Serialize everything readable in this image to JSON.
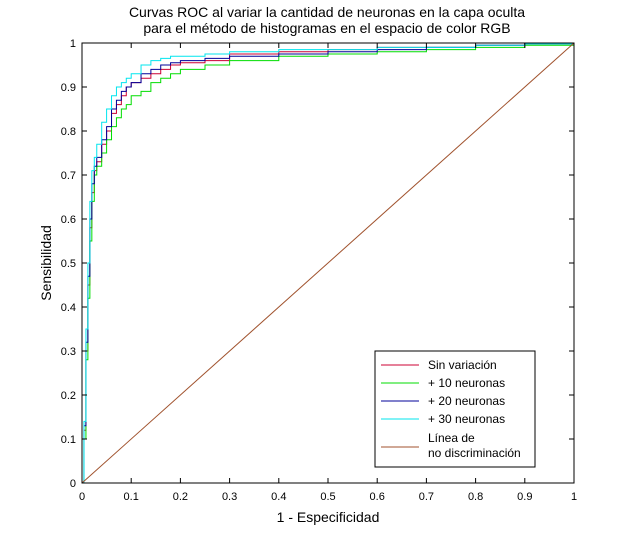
{
  "chart_data": {
    "type": "line",
    "title": [
      "Curvas ROC al variar la cantidad de neuronas en la capa oculta",
      "para el método de histogramas en el espacio de color RGB"
    ],
    "xlabel": "1 - Especificidad",
    "ylabel": "Sensibilidad",
    "xlim": [
      0,
      1
    ],
    "ylim": [
      0,
      1
    ],
    "xticks": [
      0,
      0.1,
      0.2,
      0.3,
      0.4,
      0.5,
      0.6,
      0.7,
      0.8,
      0.9,
      1
    ],
    "yticks": [
      0,
      0.1,
      0.2,
      0.3,
      0.4,
      0.5,
      0.6,
      0.7,
      0.8,
      0.9,
      1
    ],
    "xtick_labels": [
      "0",
      "0.1",
      "0.2",
      "0.3",
      "0.4",
      "0.5",
      "0.6",
      "0.7",
      "0.8",
      "0.9",
      "1"
    ],
    "ytick_labels": [
      "0",
      "0.1",
      "0.2",
      "0.3",
      "0.4",
      "0.5",
      "0.6",
      "0.7",
      "0.8",
      "0.9",
      "1"
    ],
    "grid": false,
    "legend_position": "bottom-right",
    "series": [
      {
        "name": "Sin variación",
        "color": "#cc0033",
        "points": [
          [
            0,
            0
          ],
          [
            0.004,
            0.12
          ],
          [
            0.008,
            0.3
          ],
          [
            0.012,
            0.45
          ],
          [
            0.016,
            0.58
          ],
          [
            0.02,
            0.66
          ],
          [
            0.025,
            0.71
          ],
          [
            0.03,
            0.73
          ],
          [
            0.04,
            0.77
          ],
          [
            0.05,
            0.8
          ],
          [
            0.06,
            0.84
          ],
          [
            0.07,
            0.86
          ],
          [
            0.08,
            0.88
          ],
          [
            0.09,
            0.9
          ],
          [
            0.1,
            0.91
          ],
          [
            0.12,
            0.92
          ],
          [
            0.14,
            0.93
          ],
          [
            0.16,
            0.94
          ],
          [
            0.18,
            0.95
          ],
          [
            0.2,
            0.955
          ],
          [
            0.25,
            0.96
          ],
          [
            0.3,
            0.975
          ],
          [
            0.4,
            0.98
          ],
          [
            0.5,
            0.985
          ],
          [
            0.6,
            0.99
          ],
          [
            0.7,
            0.99
          ],
          [
            0.8,
            0.995
          ],
          [
            0.9,
            0.998
          ],
          [
            1,
            1
          ]
        ]
      },
      {
        "name": "+ 10 neuronas",
        "color": "#00dd00",
        "points": [
          [
            0,
            0
          ],
          [
            0.004,
            0.1
          ],
          [
            0.008,
            0.28
          ],
          [
            0.012,
            0.42
          ],
          [
            0.016,
            0.55
          ],
          [
            0.02,
            0.64
          ],
          [
            0.025,
            0.7
          ],
          [
            0.03,
            0.72
          ],
          [
            0.04,
            0.75
          ],
          [
            0.05,
            0.78
          ],
          [
            0.06,
            0.81
          ],
          [
            0.07,
            0.83
          ],
          [
            0.08,
            0.85
          ],
          [
            0.09,
            0.86
          ],
          [
            0.1,
            0.88
          ],
          [
            0.12,
            0.89
          ],
          [
            0.14,
            0.91
          ],
          [
            0.16,
            0.92
          ],
          [
            0.18,
            0.93
          ],
          [
            0.2,
            0.94
          ],
          [
            0.25,
            0.95
          ],
          [
            0.3,
            0.96
          ],
          [
            0.4,
            0.97
          ],
          [
            0.5,
            0.975
          ],
          [
            0.6,
            0.98
          ],
          [
            0.7,
            0.985
          ],
          [
            0.8,
            0.99
          ],
          [
            0.9,
            0.995
          ],
          [
            1,
            1
          ]
        ]
      },
      {
        "name": "+ 20 neuronas",
        "color": "#000099",
        "points": [
          [
            0,
            0
          ],
          [
            0.004,
            0.13
          ],
          [
            0.008,
            0.32
          ],
          [
            0.012,
            0.47
          ],
          [
            0.016,
            0.6
          ],
          [
            0.02,
            0.68
          ],
          [
            0.025,
            0.72
          ],
          [
            0.03,
            0.74
          ],
          [
            0.04,
            0.78
          ],
          [
            0.05,
            0.81
          ],
          [
            0.06,
            0.85
          ],
          [
            0.07,
            0.87
          ],
          [
            0.08,
            0.89
          ],
          [
            0.09,
            0.9
          ],
          [
            0.1,
            0.91
          ],
          [
            0.12,
            0.93
          ],
          [
            0.14,
            0.94
          ],
          [
            0.16,
            0.95
          ],
          [
            0.18,
            0.955
          ],
          [
            0.2,
            0.96
          ],
          [
            0.25,
            0.965
          ],
          [
            0.3,
            0.97
          ],
          [
            0.4,
            0.975
          ],
          [
            0.5,
            0.98
          ],
          [
            0.6,
            0.985
          ],
          [
            0.7,
            0.99
          ],
          [
            0.8,
            0.995
          ],
          [
            0.9,
            0.998
          ],
          [
            1,
            1
          ]
        ]
      },
      {
        "name": "+ 30 neuronas",
        "color": "#00e5ee",
        "points": [
          [
            0,
            0
          ],
          [
            0.004,
            0.14
          ],
          [
            0.008,
            0.35
          ],
          [
            0.012,
            0.5
          ],
          [
            0.016,
            0.64
          ],
          [
            0.02,
            0.71
          ],
          [
            0.025,
            0.74
          ],
          [
            0.03,
            0.77
          ],
          [
            0.04,
            0.82
          ],
          [
            0.05,
            0.85
          ],
          [
            0.06,
            0.88
          ],
          [
            0.07,
            0.9
          ],
          [
            0.08,
            0.91
          ],
          [
            0.09,
            0.92
          ],
          [
            0.1,
            0.93
          ],
          [
            0.12,
            0.95
          ],
          [
            0.14,
            0.96
          ],
          [
            0.16,
            0.965
          ],
          [
            0.18,
            0.97
          ],
          [
            0.2,
            0.97
          ],
          [
            0.25,
            0.975
          ],
          [
            0.3,
            0.98
          ],
          [
            0.4,
            0.985
          ],
          [
            0.5,
            0.985
          ],
          [
            0.6,
            0.99
          ],
          [
            0.7,
            0.99
          ],
          [
            0.8,
            0.995
          ],
          [
            0.9,
            0.998
          ],
          [
            1,
            1
          ]
        ]
      },
      {
        "name": [
          "Línea de",
          "no discriminación"
        ],
        "color": "#a0522d",
        "points": [
          [
            0,
            0
          ],
          [
            1,
            1
          ]
        ]
      }
    ]
  }
}
